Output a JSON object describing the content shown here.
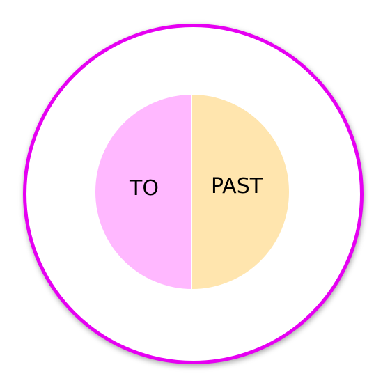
{
  "diagram": {
    "colors": {
      "ring_stroke": "#e600f2",
      "left_half_fill": "#ffb8ff",
      "right_half_fill": "#ffe5ae",
      "background": "#ffffff"
    },
    "left_half": {
      "label": "TO"
    },
    "right_half": {
      "label": "PAST"
    }
  }
}
